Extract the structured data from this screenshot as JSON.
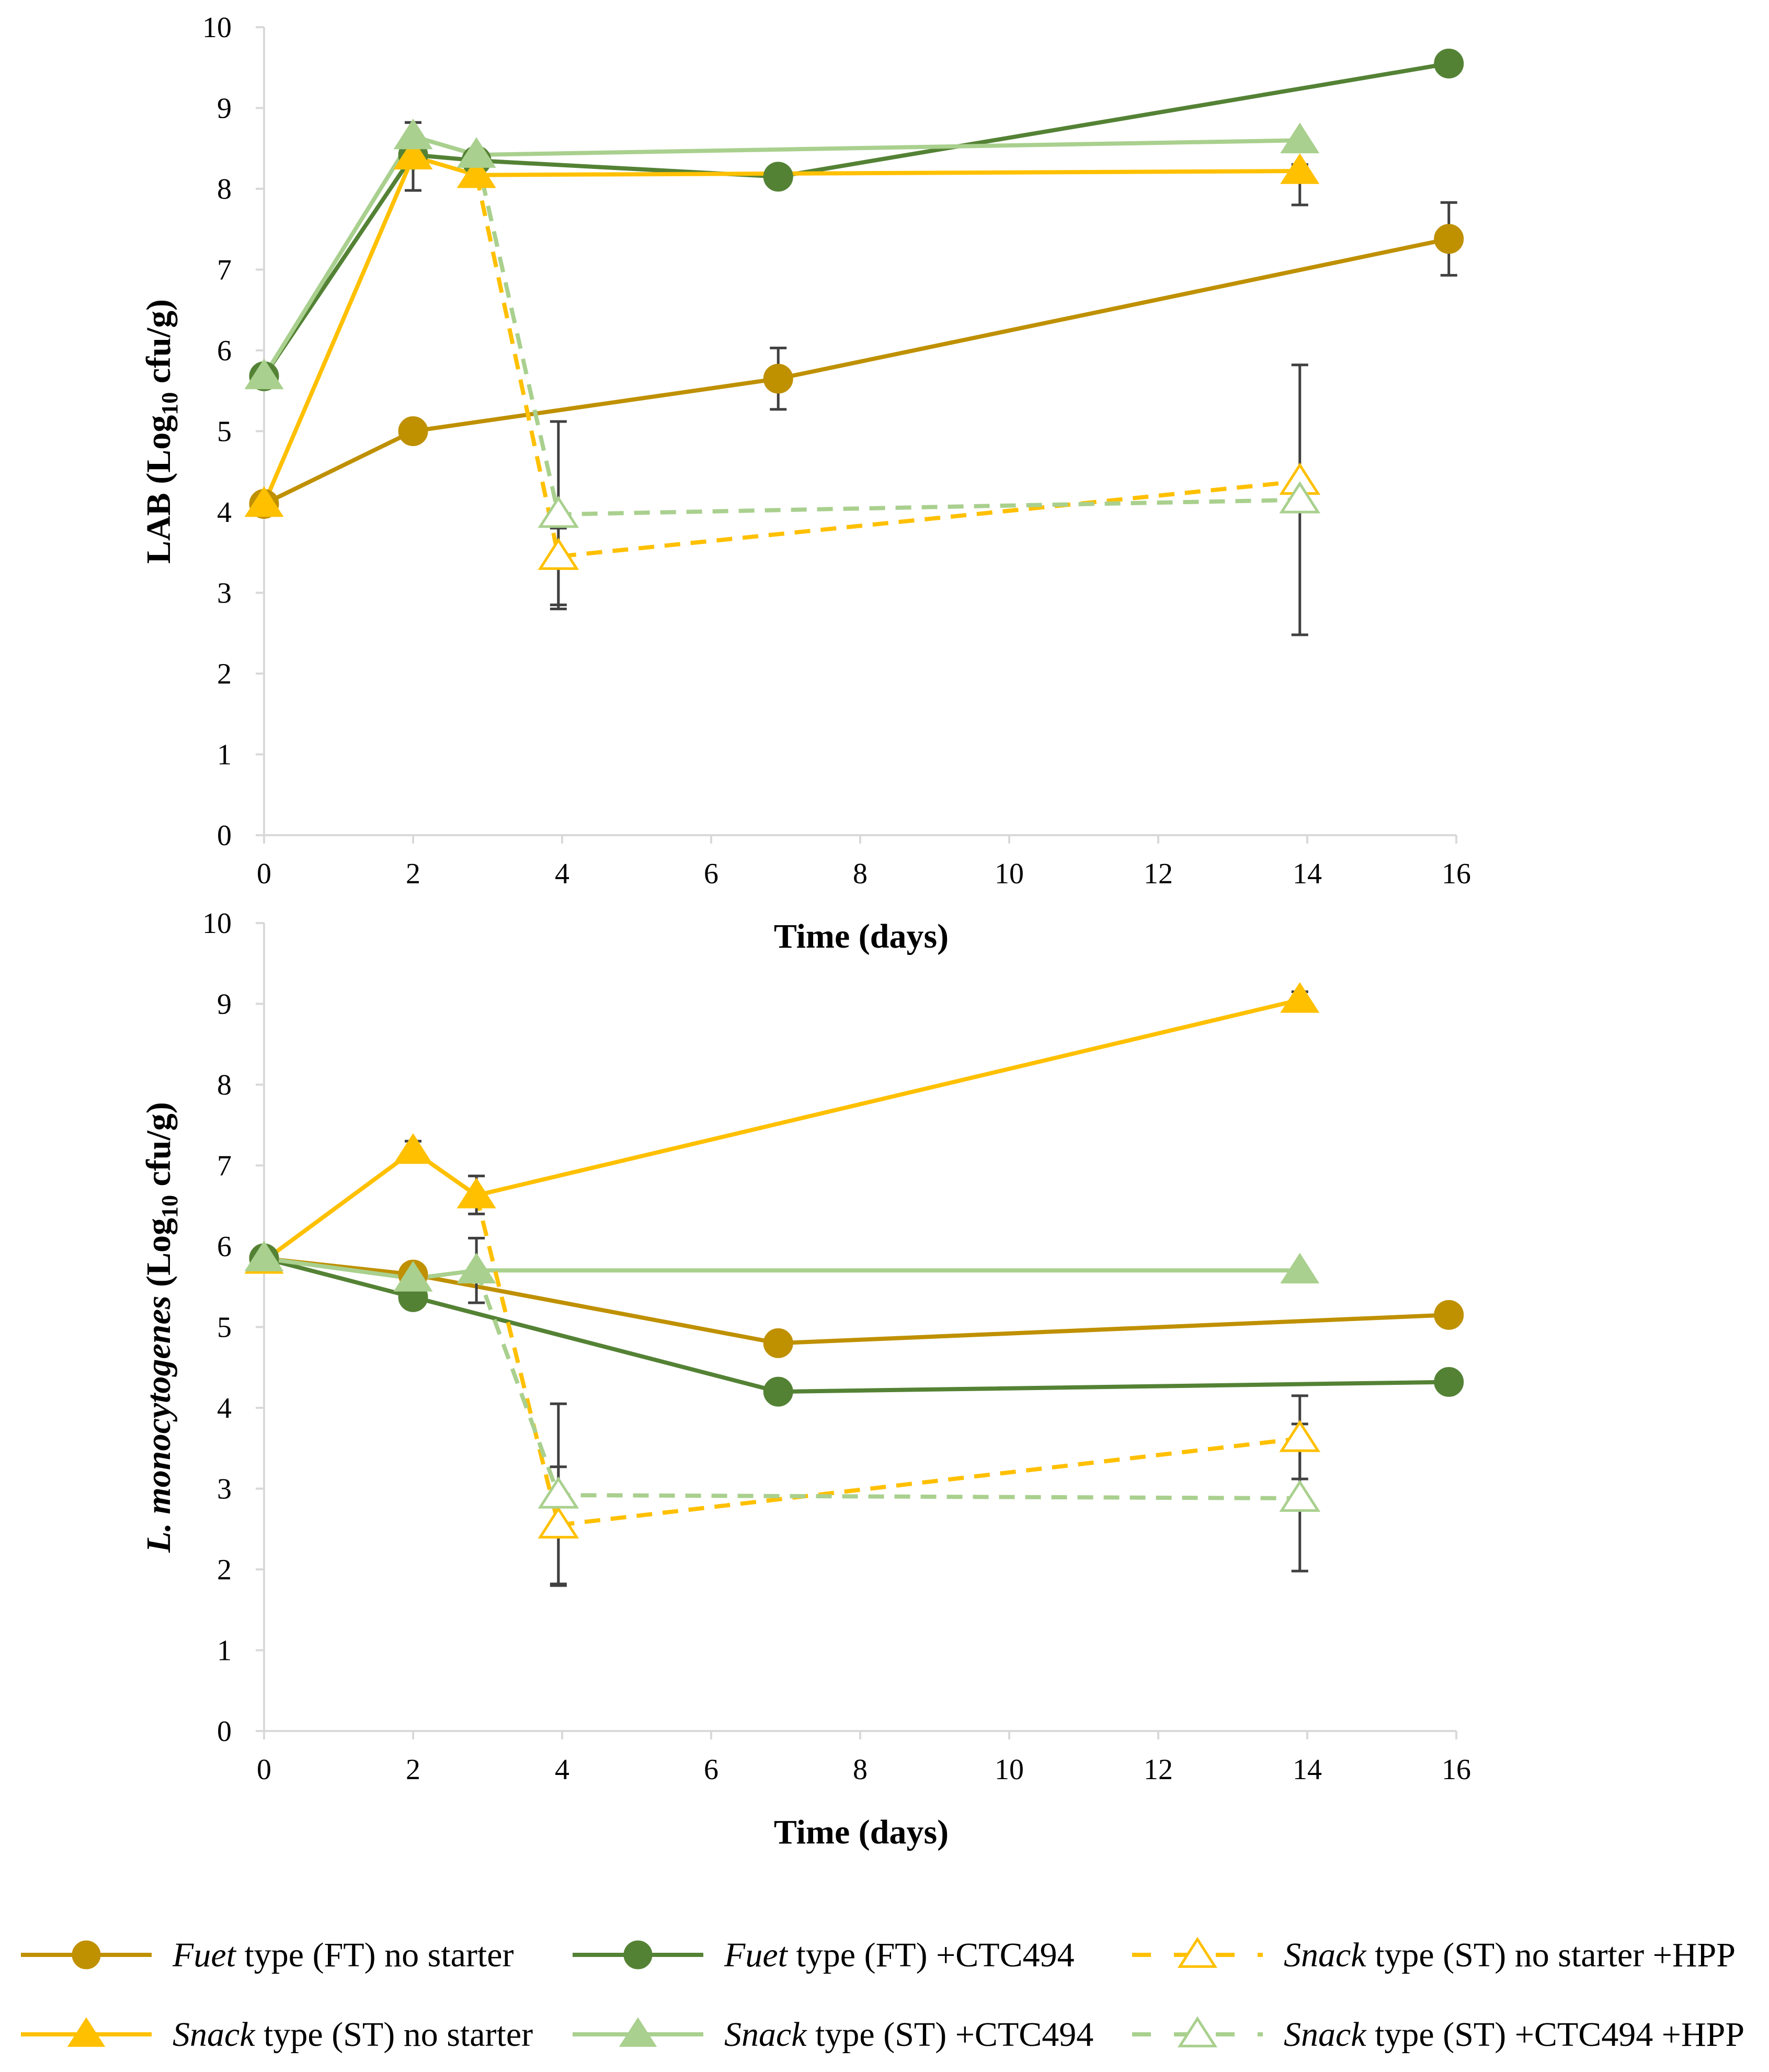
{
  "chart_data": [
    {
      "type": "line",
      "title": "",
      "xlabel": "Time (days)",
      "ylabel": {
        "main": "LAB (Log",
        "sub": "10",
        "tail": " cfu/g)"
      },
      "xlim": [
        0,
        16
      ],
      "ylim": [
        0,
        10
      ],
      "xticks": [
        "0",
        "2",
        "4",
        "6",
        "8",
        "10",
        "12",
        "14",
        "16"
      ],
      "yticks": [
        "0",
        "1",
        "2",
        "3",
        "4",
        "5",
        "6",
        "7",
        "8",
        "9",
        "10"
      ],
      "series": [
        {
          "key": "ft_no",
          "points": [
            [
              0,
              4.1
            ],
            [
              2,
              5.0
            ],
            [
              6.9,
              5.65
            ],
            [
              15.9,
              7.38
            ]
          ],
          "errors": [
            [
              6.9,
              5.27,
              6.03
            ],
            [
              15.9,
              6.93,
              7.83
            ]
          ]
        },
        {
          "key": "ft_ctc",
          "points": [
            [
              0,
              5.68
            ],
            [
              2,
              8.42
            ],
            [
              2.85,
              8.35
            ],
            [
              6.9,
              8.15
            ],
            [
              15.9,
              9.55
            ]
          ],
          "errors": []
        },
        {
          "key": "st_no",
          "points": [
            [
              0,
              4.1
            ],
            [
              2,
              8.4
            ],
            [
              2.85,
              8.17
            ],
            [
              13.9,
              8.22
            ]
          ],
          "errors": [
            [
              2,
              7.98,
              8.82
            ],
            [
              13.9,
              7.8,
              8.3
            ]
          ]
        },
        {
          "key": "st_ctc",
          "points": [
            [
              0,
              5.68
            ],
            [
              2,
              8.65
            ],
            [
              2.85,
              8.42
            ],
            [
              13.9,
              8.6
            ]
          ],
          "errors": [
            [
              2,
              8.4,
              8.82
            ]
          ]
        },
        {
          "key": "st_no_hpp",
          "points": [
            [
              2.85,
              8.17
            ],
            [
              3.95,
              3.45
            ],
            [
              13.9,
              4.38
            ]
          ],
          "errors": [
            [
              3.95,
              2.8,
              3.8
            ]
          ]
        },
        {
          "key": "st_ctc_hpp",
          "points": [
            [
              2.85,
              8.42
            ],
            [
              3.95,
              3.97
            ],
            [
              13.9,
              4.15
            ]
          ],
          "errors": [
            [
              3.95,
              2.85,
              5.12
            ],
            [
              13.9,
              2.48,
              5.82
            ]
          ]
        }
      ]
    },
    {
      "type": "line",
      "title": "",
      "xlabel": "Time (days)",
      "ylabel": {
        "main": "L. monocytogenes",
        "pre": " (Log",
        "sub": "10",
        "tail": " cfu/g)"
      },
      "xlim": [
        0,
        16
      ],
      "ylim": [
        0,
        10
      ],
      "xticks": [
        "0",
        "2",
        "4",
        "6",
        "8",
        "10",
        "12",
        "14",
        "16"
      ],
      "yticks": [
        "0",
        "1",
        "2",
        "3",
        "4",
        "5",
        "6",
        "7",
        "8",
        "9",
        "10"
      ],
      "series": [
        {
          "key": "ft_no",
          "points": [
            [
              0,
              5.85
            ],
            [
              2,
              5.65
            ],
            [
              6.9,
              4.8
            ],
            [
              15.9,
              5.15
            ]
          ],
          "errors": []
        },
        {
          "key": "ft_ctc",
          "points": [
            [
              0,
              5.85
            ],
            [
              2,
              5.37
            ],
            [
              6.9,
              4.2
            ],
            [
              15.9,
              4.32
            ]
          ],
          "errors": []
        },
        {
          "key": "st_no",
          "points": [
            [
              0,
              5.82
            ],
            [
              2,
              7.18
            ],
            [
              2.85,
              6.63
            ],
            [
              13.9,
              9.05
            ]
          ],
          "errors": [
            [
              2,
              7.08,
              7.3
            ],
            [
              2.85,
              6.4,
              6.87
            ],
            [
              13.9,
              8.95,
              9.15
            ]
          ]
        },
        {
          "key": "st_ctc",
          "points": [
            [
              0,
              5.85
            ],
            [
              2,
              5.6
            ],
            [
              2.85,
              5.7
            ],
            [
              13.9,
              5.7
            ]
          ],
          "errors": [
            [
              2.85,
              5.3,
              6.1
            ]
          ]
        },
        {
          "key": "st_no_hpp",
          "points": [
            [
              2.85,
              6.63
            ],
            [
              3.95,
              2.55
            ],
            [
              13.9,
              3.62
            ]
          ],
          "errors": [
            [
              3.95,
              1.8,
              3.27
            ],
            [
              13.9,
              3.12,
              4.15
            ]
          ]
        },
        {
          "key": "st_ctc_hpp",
          "points": [
            [
              2.85,
              5.7
            ],
            [
              3.95,
              2.92
            ],
            [
              13.9,
              2.88
            ]
          ],
          "errors": [
            [
              3.95,
              1.82,
              4.05
            ],
            [
              13.9,
              1.98,
              3.8
            ]
          ]
        }
      ]
    }
  ],
  "series_styles": {
    "ft_no": {
      "color": "#bf9000",
      "marker": "circle",
      "dash": false,
      "filled": true
    },
    "ft_ctc": {
      "color": "#548235",
      "marker": "circle",
      "dash": false,
      "filled": true
    },
    "st_no": {
      "color": "#ffc000",
      "marker": "triangle",
      "dash": false,
      "filled": true
    },
    "st_ctc": {
      "color": "#a9d08e",
      "marker": "triangle",
      "dash": false,
      "filled": true
    },
    "st_no_hpp": {
      "color": "#ffc000",
      "marker": "triangle",
      "dash": true,
      "filled": false
    },
    "st_ctc_hpp": {
      "color": "#a9d08e",
      "marker": "triangle",
      "dash": true,
      "filled": false
    }
  },
  "legend": [
    {
      "key": "ft_no",
      "italic": "Fuet",
      "rest": " type (FT) no starter"
    },
    {
      "key": "ft_ctc",
      "italic": "Fuet",
      "rest": " type (FT) +CTC494"
    },
    {
      "key": "st_no_hpp",
      "italic": "Snack",
      "rest": " type (ST) no starter +HPP"
    },
    {
      "key": "st_no",
      "italic": "Snack",
      "rest": " type (ST) no starter"
    },
    {
      "key": "st_ctc",
      "italic": "Snack",
      "rest": " type (ST) +CTC494"
    },
    {
      "key": "st_ctc_hpp",
      "italic": "Snack",
      "rest": " type (ST) +CTC494 +HPP"
    }
  ]
}
